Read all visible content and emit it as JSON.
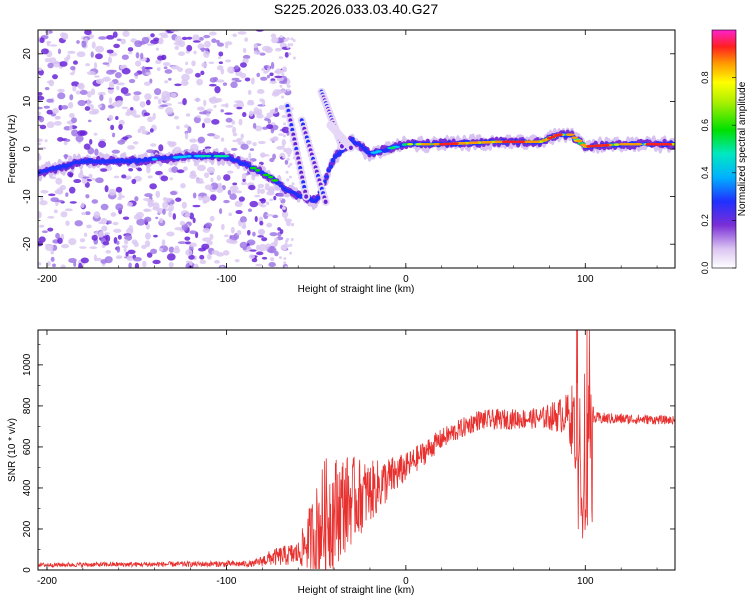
{
  "title": "S225.2026.033.03.40.G27",
  "chart_data": [
    {
      "type": "heatmap",
      "xlabel": "Height of straight line (km)",
      "ylabel": "Frequency (Hz)",
      "xlim": [
        -205,
        150
      ],
      "ylim": [
        -25,
        25
      ],
      "xticks": [
        -200,
        -100,
        0,
        100
      ],
      "xtick_labels": [
        "-200",
        "-100",
        "0",
        "100"
      ],
      "yticks": [
        -20,
        -10,
        0,
        10,
        20
      ],
      "ytick_labels": [
        "-20",
        "-10",
        "0",
        "10",
        "20"
      ],
      "colorbar": {
        "label": "Normalized spectral amplitude",
        "range": [
          0,
          1
        ],
        "ticks": [
          0.0,
          0.2,
          0.4,
          0.6,
          0.8
        ],
        "tick_labels": [
          "0.0",
          "0.2",
          "0.4",
          "0.6",
          "0.8"
        ]
      },
      "ridge": [
        {
          "x": -205,
          "y": -5
        },
        {
          "x": -180,
          "y": -2.5
        },
        {
          "x": -150,
          "y": -2.5
        },
        {
          "x": -120,
          "y": -1.5
        },
        {
          "x": -100,
          "y": -1.5
        },
        {
          "x": -85,
          "y": -4
        },
        {
          "x": -75,
          "y": -6
        },
        {
          "x": -65,
          "y": -9
        },
        {
          "x": -50,
          "y": -11
        },
        {
          "x": -40,
          "y": -2
        },
        {
          "x": -30,
          "y": 2
        },
        {
          "x": -20,
          "y": -1
        },
        {
          "x": 0,
          "y": 1
        },
        {
          "x": 20,
          "y": 1
        },
        {
          "x": 50,
          "y": 1.5
        },
        {
          "x": 75,
          "y": 1.5
        },
        {
          "x": 85,
          "y": 3
        },
        {
          "x": 92,
          "y": 3
        },
        {
          "x": 100,
          "y": 0.5
        },
        {
          "x": 120,
          "y": 1
        },
        {
          "x": 150,
          "y": 1
        }
      ]
    },
    {
      "type": "line",
      "xlabel": "Height of straight line (km)",
      "ylabel": "SNR (10 * v/v)",
      "xlim": [
        -205,
        150
      ],
      "ylim": [
        0,
        1170
      ],
      "xticks": [
        -200,
        -100,
        0,
        100
      ],
      "xtick_labels": [
        "-200",
        "-100",
        "0",
        "100"
      ],
      "yticks": [
        0,
        200,
        400,
        600,
        800,
        1000
      ],
      "ytick_labels": [
        "0",
        "200",
        "400",
        "600",
        "800",
        "1000"
      ],
      "color": "#e8302e",
      "envelope": [
        {
          "x": -205,
          "base": 25,
          "noise": 10
        },
        {
          "x": -85,
          "base": 30,
          "noise": 15
        },
        {
          "x": -75,
          "base": 60,
          "noise": 40
        },
        {
          "x": -60,
          "base": 80,
          "noise": 60
        },
        {
          "x": -45,
          "base": 250,
          "noise": 300
        },
        {
          "x": -35,
          "base": 320,
          "noise": 250
        },
        {
          "x": -20,
          "base": 380,
          "noise": 150
        },
        {
          "x": 0,
          "base": 500,
          "noise": 70
        },
        {
          "x": 20,
          "base": 640,
          "noise": 50
        },
        {
          "x": 40,
          "base": 730,
          "noise": 50
        },
        {
          "x": 75,
          "base": 740,
          "noise": 50
        },
        {
          "x": 90,
          "base": 760,
          "noise": 100
        },
        {
          "x": 100,
          "base": 650,
          "noise": 400
        },
        {
          "x": 105,
          "base": 740,
          "noise": 30
        },
        {
          "x": 150,
          "base": 730,
          "noise": 20
        }
      ]
    }
  ]
}
